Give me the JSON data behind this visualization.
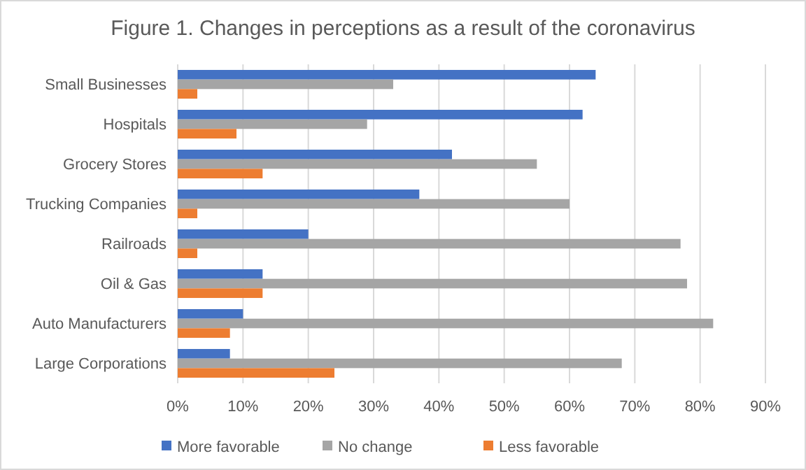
{
  "chart_data": {
    "type": "bar",
    "orientation": "horizontal",
    "title": "Figure 1. Changes in perceptions as a result of the coronavirus",
    "categories": [
      "Small Businesses",
      "Hospitals",
      "Grocery Stores",
      "Trucking Companies",
      "Railroads",
      "Oil & Gas",
      "Auto Manufacturers",
      "Large Corporations"
    ],
    "series": [
      {
        "name": "More favorable",
        "color": "#4472c4",
        "values": [
          64,
          62,
          42,
          37,
          20,
          13,
          10,
          8
        ]
      },
      {
        "name": "No change",
        "color": "#a5a5a5",
        "values": [
          33,
          29,
          55,
          60,
          77,
          78,
          82,
          68
        ]
      },
      {
        "name": "Less favorable",
        "color": "#ed7d31",
        "values": [
          3,
          9,
          13,
          3,
          3,
          13,
          8,
          24
        ]
      }
    ],
    "xlim": [
      0,
      90
    ],
    "xticks": [
      {
        "value": 0,
        "label": "0%"
      },
      {
        "value": 10,
        "label": "10%"
      },
      {
        "value": 20,
        "label": "20%"
      },
      {
        "value": 30,
        "label": "30%"
      },
      {
        "value": 40,
        "label": "40%"
      },
      {
        "value": 50,
        "label": "50%"
      },
      {
        "value": 60,
        "label": "60%"
      },
      {
        "value": 70,
        "label": "70%"
      },
      {
        "value": 80,
        "label": "80%"
      },
      {
        "value": 90,
        "label": "90%"
      }
    ],
    "grid": "x",
    "legend": "bottom"
  }
}
